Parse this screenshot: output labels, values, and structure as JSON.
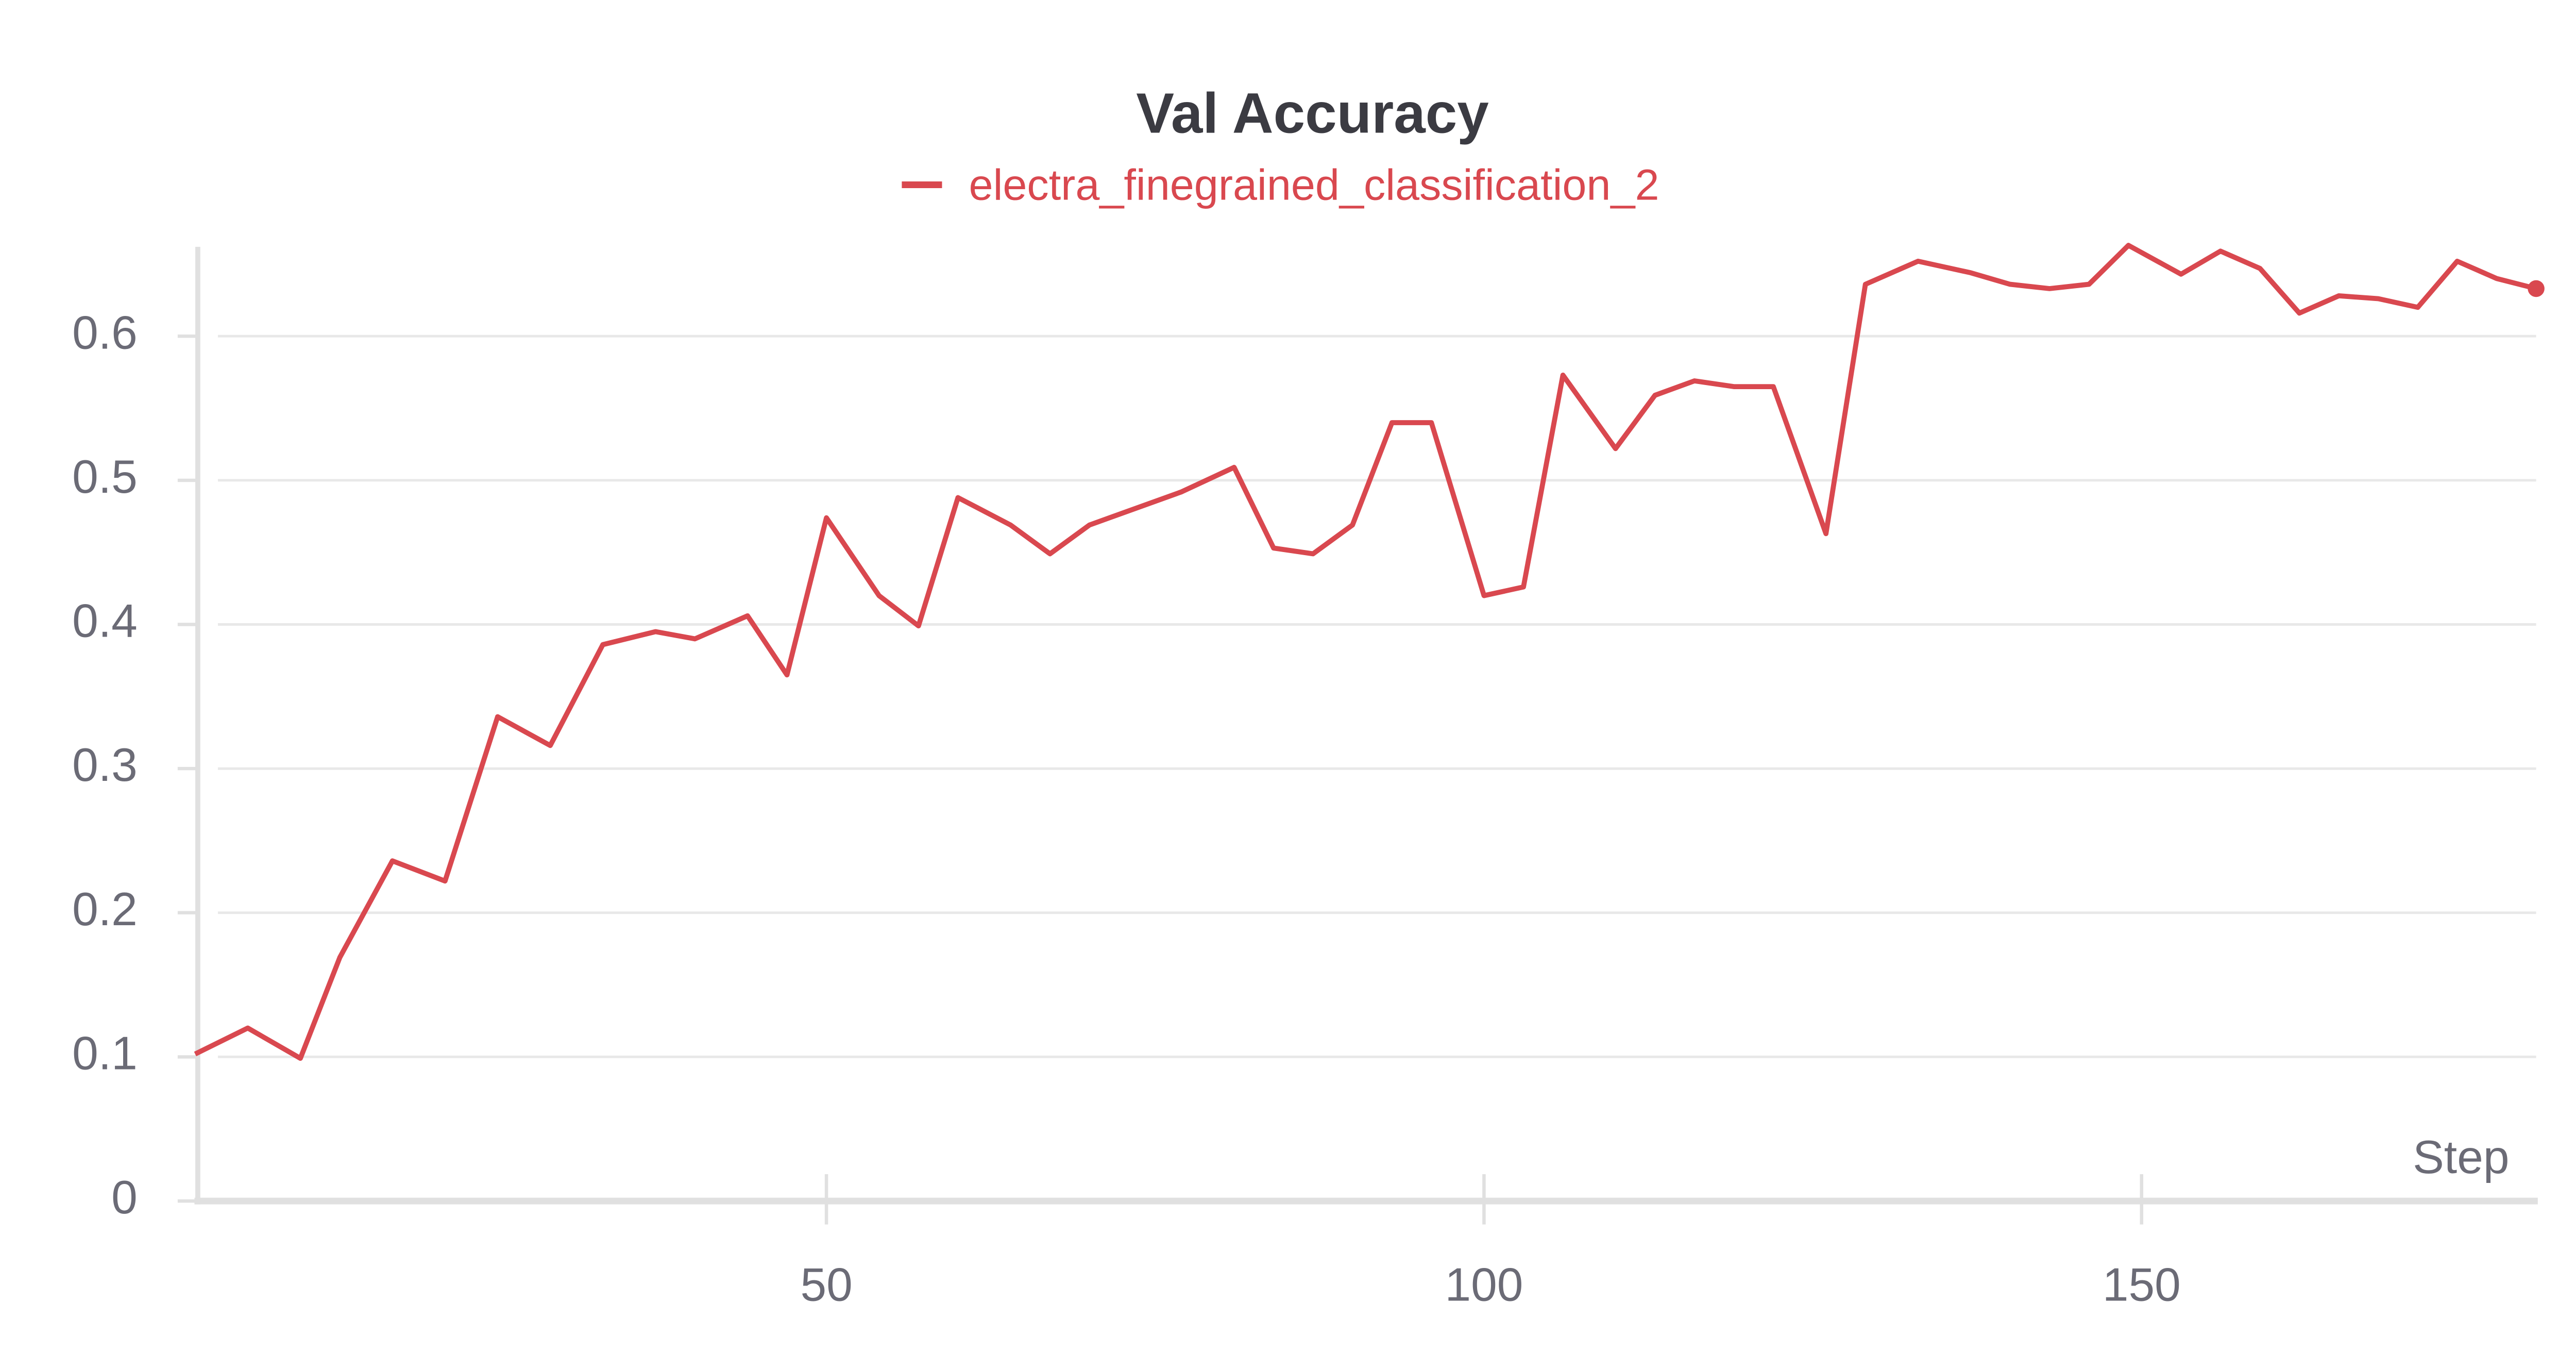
{
  "chart_data": {
    "type": "line",
    "title": "Val Accuracy",
    "x_label": "Step",
    "x": [
      2,
      6,
      10,
      13,
      17,
      21,
      25,
      29,
      33,
      37,
      40,
      44,
      47,
      50,
      54,
      57,
      60,
      64,
      67,
      70,
      77,
      81,
      84,
      87,
      90,
      93,
      96,
      100,
      103,
      106,
      110,
      113,
      116,
      119,
      122,
      126,
      129,
      133,
      137,
      140,
      143,
      146,
      149,
      153,
      156,
      159,
      162,
      165,
      168,
      171,
      174,
      177,
      180
    ],
    "series": [
      {
        "name": "electra_finegrained_classification_2",
        "color": "#d9484f",
        "values": [
          0.102,
          0.12,
          0.099,
          0.169,
          0.236,
          0.222,
          0.336,
          0.316,
          0.386,
          0.395,
          0.39,
          0.406,
          0.365,
          0.474,
          0.42,
          0.399,
          0.488,
          0.469,
          0.449,
          0.469,
          0.492,
          0.509,
          0.453,
          0.449,
          0.469,
          0.54,
          0.54,
          0.42,
          0.426,
          0.573,
          0.522,
          0.559,
          0.569,
          0.565,
          0.565,
          0.463,
          0.636,
          0.652,
          0.644,
          0.636,
          0.633,
          0.636,
          0.663,
          0.643,
          0.659,
          0.647,
          0.616,
          0.628,
          0.626,
          0.62,
          0.652,
          0.64,
          0.633
        ]
      }
    ],
    "xlim": [
      2.2,
      180
    ],
    "ylim": [
      0,
      0.662
    ],
    "xticks": [
      50,
      100,
      150
    ],
    "yticks": [
      0,
      0.1,
      0.2,
      0.3,
      0.4,
      0.5,
      0.6
    ],
    "grid": true
  }
}
